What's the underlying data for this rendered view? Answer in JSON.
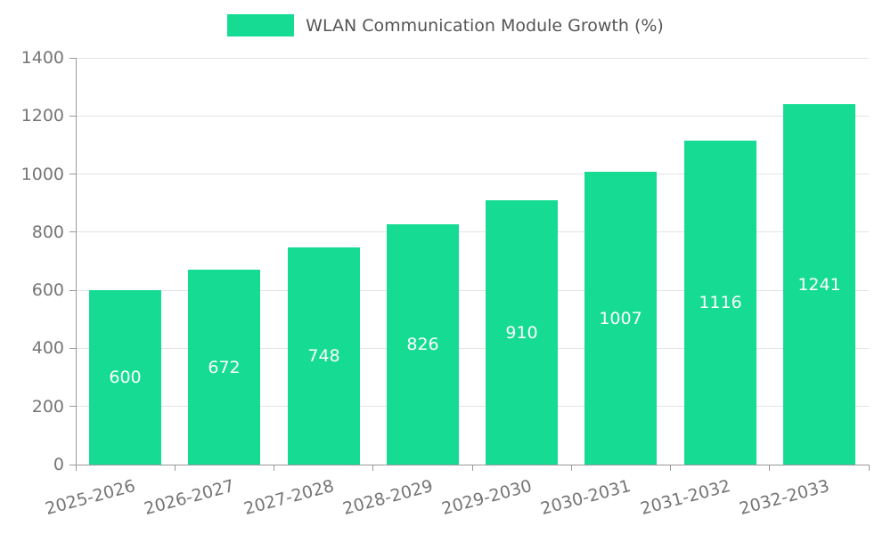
{
  "legend": {
    "label": "WLAN Communication Module Growth (%)"
  },
  "chart_data": {
    "type": "bar",
    "title": "WLAN Communication Module Growth (%)",
    "categories": [
      "2025-2026",
      "2026-2027",
      "2027-2028",
      "2028-2029",
      "2029-2030",
      "2030-2031",
      "2031-2032",
      "2032-2033"
    ],
    "values": [
      600,
      672,
      748,
      826,
      910,
      1007,
      1116,
      1241
    ],
    "value_labels": [
      "600",
      "672",
      "748",
      "826",
      "910",
      "1007",
      "1116",
      "1241"
    ],
    "xlabel": "",
    "ylabel": "",
    "ylim": [
      0,
      1400
    ],
    "yticks": [
      0,
      200,
      400,
      600,
      800,
      1000,
      1200,
      1400
    ],
    "grid": true,
    "legend_position": "top-center",
    "colors": {
      "bar": "#16DB93",
      "value_label": "#FFFFFF",
      "axis_label": "#757575",
      "legend_text": "#555555",
      "gridline": "#E3E3E3",
      "axis_line": "#999999",
      "background": "#FFFFFF"
    }
  }
}
